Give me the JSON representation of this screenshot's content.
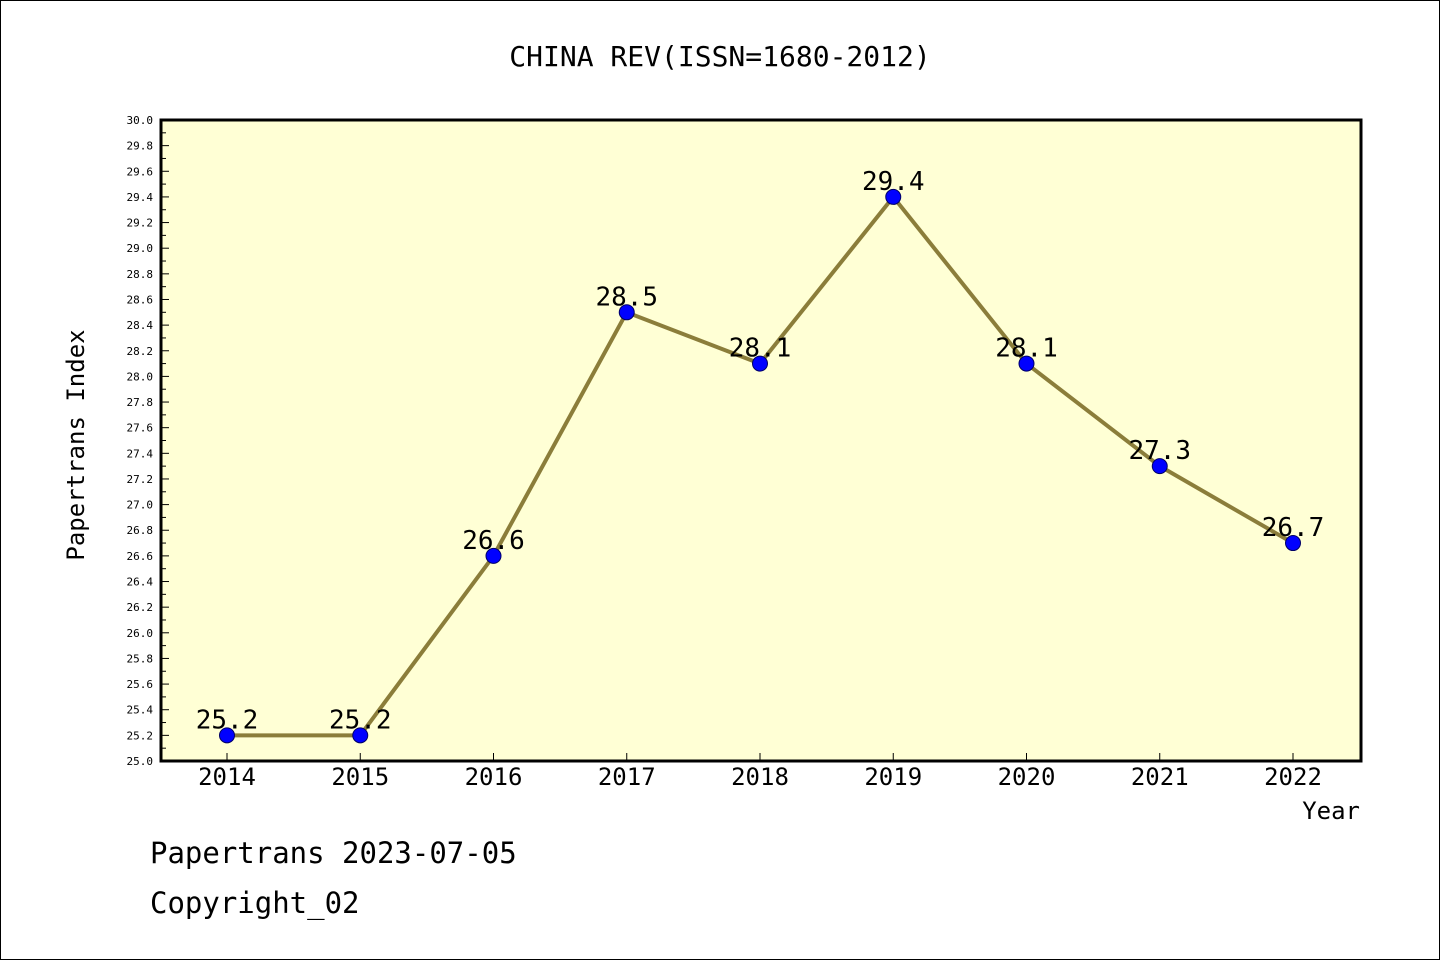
{
  "chart_data": {
    "type": "line",
    "title": "CHINA REV(ISSN=1680-2012)",
    "xlabel": "Year",
    "ylabel": "Papertrans Index",
    "x": [
      "2014",
      "2015",
      "2016",
      "2017",
      "2018",
      "2019",
      "2020",
      "2021",
      "2022"
    ],
    "values": [
      25.2,
      25.2,
      26.6,
      28.5,
      28.1,
      29.4,
      28.1,
      27.3,
      26.7
    ],
    "data_labels": [
      "25.2",
      "25.2",
      "26.6",
      "28.5",
      "28.1",
      "29.4",
      "28.1",
      "27.3",
      "26.7"
    ],
    "ylim": [
      25.0,
      30.0
    ],
    "y_ticks": [
      "25.0",
      "25.2",
      "25.4",
      "25.6",
      "25.8",
      "26.0",
      "26.2",
      "26.4",
      "26.6",
      "26.8",
      "27.0",
      "27.2",
      "27.4",
      "27.6",
      "27.8",
      "28.0",
      "28.2",
      "28.4",
      "28.6",
      "28.8",
      "29.0",
      "29.2",
      "29.4",
      "29.6",
      "29.8",
      "30.0"
    ],
    "grid": false,
    "line_color": "#8B7D3A",
    "marker_color": "#0000FF",
    "plot_background": "#FFFFD5"
  },
  "footer": {
    "line1": "Papertrans 2023-07-05",
    "line2": "Copyright_02"
  }
}
